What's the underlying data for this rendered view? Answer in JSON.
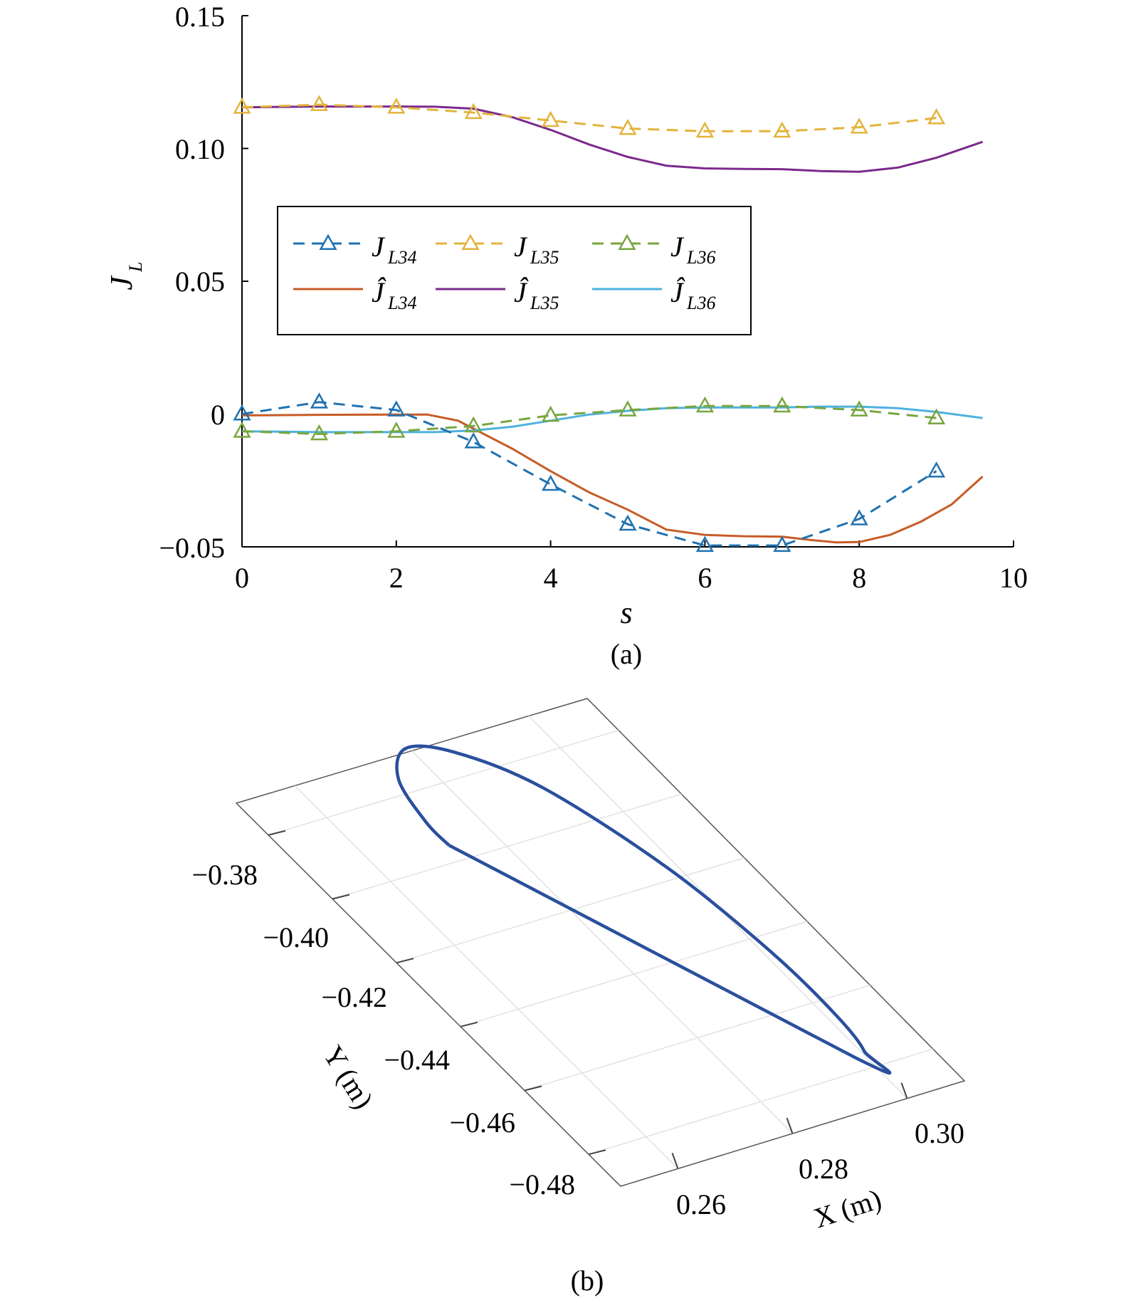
{
  "chart_data": [
    {
      "type": "line",
      "panel_label": "(a)",
      "xlabel": "s",
      "ylabel": "J",
      "ylabel_sub": "L",
      "xlim": [
        0,
        10
      ],
      "ylim": [
        -0.05,
        0.15
      ],
      "xticks": [
        "0",
        "2",
        "4",
        "6",
        "8",
        "10"
      ],
      "yticks": [
        "0.15",
        "0.10",
        "0.05",
        "0",
        "−0.05"
      ],
      "legend_position": "upper-center",
      "series": [
        {
          "name": "J",
          "sub": "L34",
          "style": "dashed-triangle",
          "color": "#1f72b0",
          "x": [
            0,
            1,
            2,
            3,
            4,
            5,
            6,
            7,
            8,
            9
          ],
          "y": [
            0.0,
            0.0045,
            0.0015,
            -0.0105,
            -0.0265,
            -0.0415,
            -0.0495,
            -0.0495,
            -0.0395,
            -0.0215
          ]
        },
        {
          "name": "J",
          "sub": "L35",
          "style": "dashed-triangle",
          "color": "#e3b43c",
          "x": [
            0,
            1,
            2,
            3,
            4,
            5,
            6,
            7,
            8,
            9
          ],
          "y": [
            0.1155,
            0.1165,
            0.1155,
            0.1135,
            0.1105,
            0.1075,
            0.1065,
            0.1065,
            0.108,
            0.1115
          ]
        },
        {
          "name": "J",
          "sub": "L36",
          "style": "dashed-triangle",
          "color": "#78a640",
          "x": [
            0,
            1,
            2,
            3,
            4,
            5,
            6,
            7,
            8,
            9
          ],
          "y": [
            -0.0065,
            -0.0075,
            -0.0065,
            -0.0045,
            -0.0005,
            0.0015,
            0.003,
            0.003,
            0.0015,
            -0.0015
          ]
        },
        {
          "name": "Ĵ",
          "sub": "L34",
          "style": "solid",
          "color": "#c75c27",
          "x": [
            0,
            1,
            2,
            2.4,
            2.8,
            3,
            3.5,
            4,
            4.5,
            5,
            5.5,
            6,
            6.5,
            7,
            7.4,
            7.7,
            8,
            8.4,
            8.8,
            9.2,
            9.6
          ],
          "y": [
            -0.0005,
            -0.0003,
            -0.0002,
            -0.0002,
            -0.0025,
            -0.0055,
            -0.013,
            -0.0215,
            -0.0295,
            -0.036,
            -0.0435,
            -0.0455,
            -0.046,
            -0.0462,
            -0.0475,
            -0.0483,
            -0.0482,
            -0.0455,
            -0.0405,
            -0.034,
            -0.0235
          ]
        },
        {
          "name": "Ĵ",
          "sub": "L35",
          "style": "solid",
          "color": "#7b2a8c",
          "x": [
            0,
            1,
            2,
            2.5,
            3,
            3.5,
            4,
            4.5,
            5,
            5.5,
            6,
            6.5,
            7,
            7.5,
            8,
            8.5,
            9,
            9.6
          ],
          "y": [
            0.1155,
            0.1158,
            0.1158,
            0.1157,
            0.115,
            0.1118,
            0.107,
            0.1015,
            0.0968,
            0.0935,
            0.0925,
            0.0923,
            0.0922,
            0.0915,
            0.0912,
            0.0928,
            0.0965,
            0.1025
          ]
        },
        {
          "name": "Ĵ",
          "sub": "L36",
          "style": "solid",
          "color": "#4eb2de",
          "x": [
            0,
            1,
            2,
            2.5,
            3,
            3.5,
            4,
            4.5,
            5,
            5.5,
            6,
            6.5,
            7,
            7.5,
            8,
            8.5,
            9,
            9.6
          ],
          "y": [
            -0.0065,
            -0.0068,
            -0.0068,
            -0.0068,
            -0.0062,
            -0.0048,
            -0.0025,
            -0.0002,
            0.0012,
            0.0022,
            0.0025,
            0.0025,
            0.0025,
            0.0028,
            0.0028,
            0.0022,
            0.0008,
            -0.0015
          ]
        }
      ]
    },
    {
      "type": "line",
      "panel_label": "(b)",
      "projection": "3d",
      "xlabel": "X (m)",
      "ylabel": "Y (m)",
      "xticks": [
        "0.26",
        "0.28",
        "0.30"
      ],
      "yticks": [
        "−0.38",
        "−0.40",
        "−0.42",
        "−0.44",
        "−0.46",
        "−0.48"
      ],
      "grid": true,
      "series": [
        {
          "name": "",
          "color": "#2a4f9e",
          "x": [
            0.2725,
            0.2725,
            0.2745,
            0.2795,
            0.2855,
            0.2925,
            0.2985,
            0.3012,
            0.3015,
            0.3005,
            0.2985,
            0.2725
          ],
          "y": [
            -0.3955,
            -0.3885,
            -0.376,
            -0.369,
            -0.3735,
            -0.3885,
            -0.417,
            -0.445,
            -0.465,
            -0.4755,
            -0.4765,
            -0.3955
          ]
        }
      ]
    }
  ]
}
